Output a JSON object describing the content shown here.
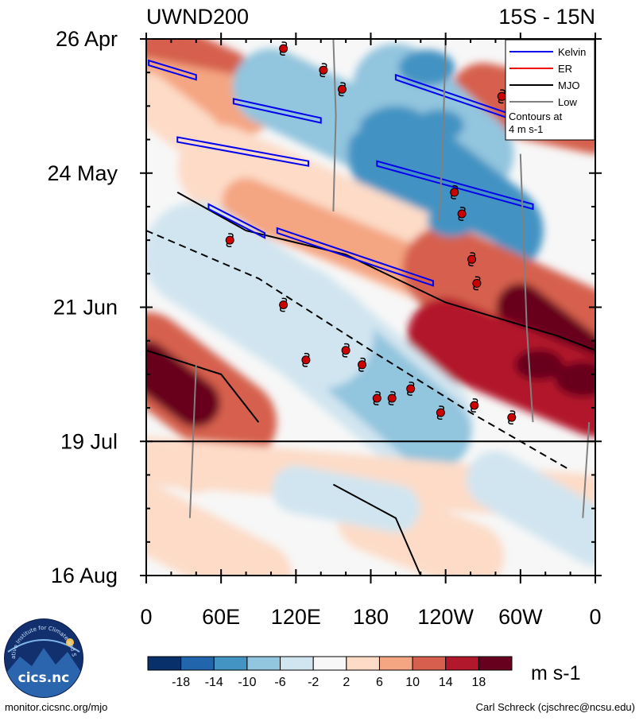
{
  "chart_data": {
    "type": "heatmap",
    "title": "UWND200",
    "subtitle": "15S - 15N",
    "xlabel": "",
    "ylabel": "",
    "x_tick_labels": [
      "0",
      "60E",
      "120E",
      "180",
      "120W",
      "60W",
      "0"
    ],
    "x_tick_values_deg": [
      0,
      60,
      120,
      180,
      240,
      300,
      360
    ],
    "xlim_deg": [
      0,
      360
    ],
    "y_tick_labels": [
      "26 Apr",
      "24 May",
      "21 Jun",
      "19 Jul",
      "16 Aug"
    ],
    "y_tick_values_day": [
      0,
      28,
      56,
      84,
      112
    ],
    "ylim_day": [
      0,
      112
    ],
    "forecast_start_day": 84,
    "colorbar": {
      "unit": "m s-1",
      "tick_labels": [
        "-18",
        "-14",
        "-10",
        "-6",
        "-2",
        "2",
        "6",
        "10",
        "14",
        "18"
      ],
      "colors": [
        "#08306b",
        "#2166ac",
        "#4393c3",
        "#92c5de",
        "#d1e5f0",
        "#f7f7f7",
        "#fddbc7",
        "#f4a582",
        "#d6604d",
        "#b2182b",
        "#67001f"
      ]
    },
    "legend": {
      "placement": "top-right",
      "entries": [
        {
          "label": "Kelvin",
          "color": "#0000ee"
        },
        {
          "label": "ER",
          "color": "#ee0000"
        },
        {
          "label": "MJO",
          "color": "#000000"
        },
        {
          "label": "Low",
          "color": "#808080"
        }
      ],
      "note_line1": "Contours at",
      "note_line2": "4 m s-1"
    },
    "cyclone_markers": [
      {
        "lon": 110,
        "day": 2
      },
      {
        "lon": 142,
        "day": 6.5
      },
      {
        "lon": 157,
        "day": 10.5
      },
      {
        "lon": 285,
        "day": 12
      },
      {
        "lon": 247,
        "day": 32
      },
      {
        "lon": 253,
        "day": 36.5
      },
      {
        "lon": 67,
        "day": 42
      },
      {
        "lon": 261,
        "day": 46
      },
      {
        "lon": 265,
        "day": 51
      },
      {
        "lon": 110,
        "day": 55.5
      },
      {
        "lon": 160,
        "day": 65
      },
      {
        "lon": 128,
        "day": 67
      },
      {
        "lon": 173,
        "day": 68
      },
      {
        "lon": 212,
        "day": 73
      },
      {
        "lon": 197,
        "day": 75
      },
      {
        "lon": 185,
        "day": 75
      },
      {
        "lon": 263,
        "day": 76.5
      },
      {
        "lon": 236,
        "day": 78
      },
      {
        "lon": 293,
        "day": 79
      }
    ],
    "mjo_contours_approx": [
      {
        "style": "solid",
        "points": [
          [
            25,
            32
          ],
          [
            80,
            40
          ],
          [
            160,
            45
          ],
          [
            240,
            55
          ],
          [
            330,
            62
          ],
          [
            360,
            65
          ]
        ]
      },
      {
        "style": "dashed",
        "points": [
          [
            0,
            40
          ],
          [
            90,
            50
          ],
          [
            180,
            65
          ],
          [
            260,
            78
          ],
          [
            340,
            90
          ]
        ]
      },
      {
        "style": "solid",
        "points": [
          [
            0,
            65
          ],
          [
            60,
            70
          ],
          [
            90,
            80
          ]
        ]
      },
      {
        "style": "solid",
        "points": [
          [
            150,
            93
          ],
          [
            200,
            100
          ],
          [
            220,
            112
          ]
        ]
      }
    ],
    "kelvin_contours_approx": [
      {
        "points": [
          [
            2,
            5
          ],
          [
            40,
            8
          ]
        ]
      },
      {
        "points": [
          [
            70,
            13
          ],
          [
            140,
            17
          ]
        ]
      },
      {
        "points": [
          [
            25,
            21
          ],
          [
            130,
            26
          ]
        ]
      },
      {
        "points": [
          [
            50,
            35
          ],
          [
            95,
            41
          ]
        ]
      },
      {
        "points": [
          [
            105,
            40
          ],
          [
            230,
            51
          ]
        ]
      },
      {
        "points": [
          [
            185,
            26
          ],
          [
            310,
            35
          ]
        ]
      },
      {
        "points": [
          [
            200,
            8
          ],
          [
            290,
            16
          ]
        ]
      }
    ]
  },
  "credits": {
    "left": "monitor.cicsnc.org/mjo",
    "right": "Carl Schreck (cjschrec@ncsu.edu)"
  },
  "logo": {
    "text": "cics.nc",
    "ring_text": "Cooperative Institute for Climate and Satellites"
  }
}
